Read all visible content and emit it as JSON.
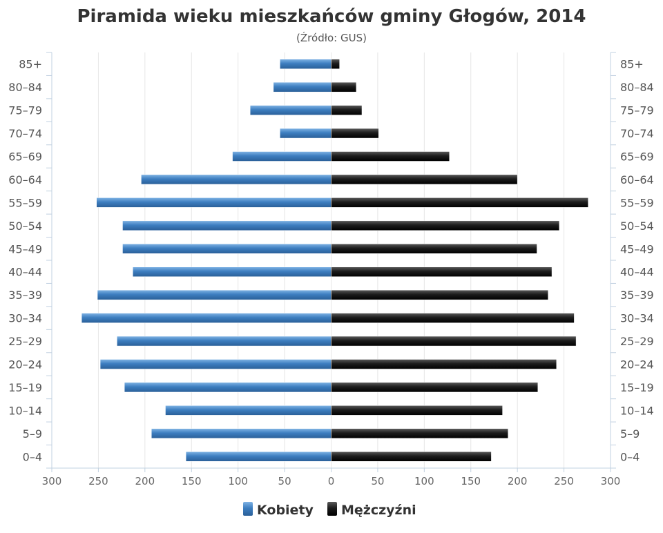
{
  "chart_data": {
    "type": "bar",
    "orientation": "horizontal-pyramid",
    "title": "Piramida wieku mieszkańców gminy Głogów, 2014",
    "subtitle": "(Źródło: GUS)",
    "categories": [
      "85+",
      "80-84",
      "75-79",
      "70-74",
      "65-69",
      "60-64",
      "55-59",
      "50-54",
      "45-49",
      "40-44",
      "35-39",
      "30-34",
      "25-29",
      "20-24",
      "15-19",
      "10-14",
      "5-9",
      "0-4"
    ],
    "category_labels": [
      "85+",
      "80–84",
      "75–79",
      "70–74",
      "65–69",
      "60–64",
      "55–59",
      "50–54",
      "45–49",
      "40–44",
      "35–39",
      "30–34",
      "25–29",
      "20–24",
      "15–19",
      "10–14",
      "5–9",
      "0–4"
    ],
    "series": [
      {
        "name": "Kobiety",
        "color": "#3d7ec0",
        "side": "left",
        "values": [
          55,
          62,
          87,
          55,
          106,
          204,
          252,
          224,
          224,
          213,
          251,
          268,
          230,
          248,
          222,
          178,
          193,
          156
        ]
      },
      {
        "name": "Mężczyźni",
        "color": "#1c1c1c",
        "side": "right",
        "values": [
          9,
          27,
          33,
          51,
          127,
          200,
          276,
          245,
          221,
          237,
          233,
          261,
          263,
          242,
          222,
          184,
          190,
          172
        ]
      }
    ],
    "xlim": [
      -300,
      300
    ],
    "x_ticks": [
      -300,
      -250,
      -200,
      -150,
      -100,
      -50,
      0,
      50,
      100,
      150,
      200,
      250,
      300
    ],
    "x_tick_labels": [
      "300",
      "250",
      "200",
      "150",
      "100",
      "50",
      "0",
      "50",
      "100",
      "150",
      "200",
      "250",
      "300"
    ],
    "grid": true,
    "legend_position": "bottom-center"
  }
}
